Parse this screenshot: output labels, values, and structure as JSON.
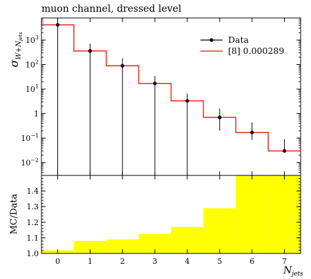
{
  "chart_data": [
    {
      "panel": "main",
      "type": "line",
      "title": "muon channel, dressed level",
      "ylabel": "σ_{W + N_jets}",
      "yscale": "log",
      "ylim": [
        0.003,
        8000
      ],
      "xlim": [
        -0.5,
        7.5
      ],
      "x_ticks": [
        0,
        1,
        2,
        3,
        4,
        5,
        6,
        7
      ],
      "y_ticks": [
        {
          "value": 1000,
          "label": "10^3"
        },
        {
          "value": 100,
          "label": "10^2"
        },
        {
          "value": 10,
          "label": "10^1"
        },
        {
          "value": 1,
          "label": "1"
        },
        {
          "value": 0.1,
          "label": "10^−1"
        },
        {
          "value": 0.01,
          "label": "10^−2"
        }
      ],
      "legend_position": "top-right",
      "series": [
        {
          "name": "Data",
          "kind": "points-with-errors",
          "color": "#000000",
          "x": [
            0,
            1,
            2,
            3,
            4,
            5,
            6,
            7
          ],
          "y": [
            4200,
            360,
            90,
            17,
            3.3,
            0.7,
            0.17,
            0.03
          ],
          "y_err_low": [
            4200,
            360,
            90,
            17,
            3.3,
            0.5,
            0.085,
            0.0028
          ],
          "y_err_high": [
            4200,
            360,
            90,
            17,
            3.3,
            0.93,
            0.27,
            0.06
          ]
        },
        {
          "name": "[8] 0.000289",
          "kind": "histogram",
          "color": "#e8382c",
          "bin_edges": [
            -0.5,
            0.5,
            1.5,
            2.5,
            3.5,
            4.5,
            5.5,
            6.5,
            7.5
          ],
          "values": [
            4200,
            360,
            90,
            17,
            3.3,
            0.7,
            0.17,
            0.03
          ]
        }
      ]
    },
    {
      "panel": "ratio",
      "type": "bar",
      "ylabel": "MC/Data",
      "xlabel": "N_jets",
      "ylim": [
        1.0,
        1.5
      ],
      "xlim": [
        -0.5,
        7.5
      ],
      "y_ticks": [
        "1.0",
        "1.1",
        "1.2",
        "1.3",
        "1.4"
      ],
      "x_ticks": [
        0,
        1,
        2,
        3,
        4,
        5,
        6,
        7
      ],
      "fill_color": "#ffff00",
      "bin_edges": [
        -0.5,
        0.5,
        1.5,
        2.5,
        3.5,
        4.5,
        5.5,
        6.5,
        7.5
      ],
      "values": [
        1.02,
        1.08,
        1.09,
        1.125,
        1.17,
        1.29,
        1.5,
        1.5
      ],
      "reference_line": 1.0
    }
  ]
}
